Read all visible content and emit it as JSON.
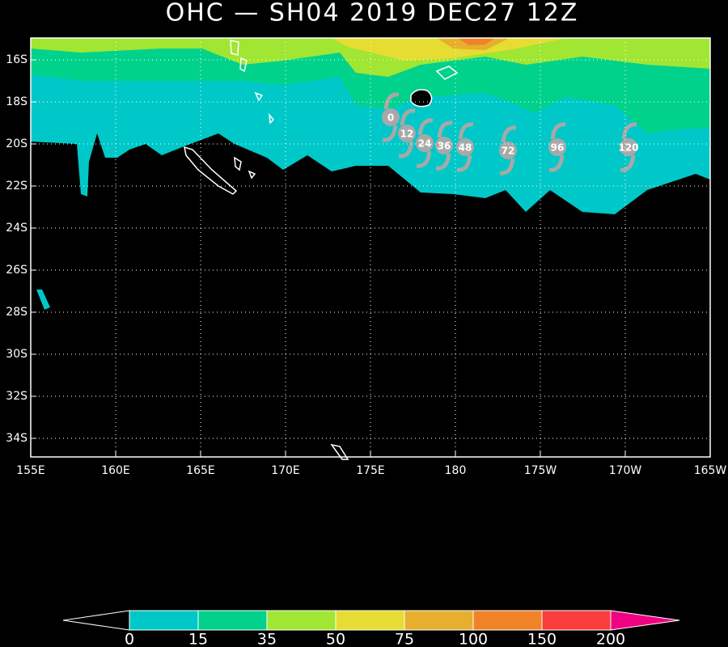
{
  "title": "OHC — SH04 2019 DEC27 12Z",
  "map": {
    "lat_labels": [
      "16S",
      "18S",
      "20S",
      "22S",
      "24S",
      "26S",
      "28S",
      "30S",
      "32S",
      "34S"
    ],
    "lon_labels": [
      "155E",
      "160E",
      "165E",
      "170E",
      "175E",
      "180",
      "175W",
      "170W",
      "165W"
    ]
  },
  "track": {
    "labels": [
      "0",
      "12",
      "24",
      "36",
      "48",
      "72",
      "96",
      "120"
    ],
    "color": "#a8a8a8"
  },
  "colorbar": {
    "levels": [
      0,
      15,
      35,
      50,
      75,
      100,
      150,
      200
    ],
    "colors": [
      "#00c8c8",
      "#00d28c",
      "#a0e632",
      "#e6dc32",
      "#e6af2d",
      "#f08228",
      "#fa3c3c"
    ],
    "under_color": "#000000",
    "over_color": "#f00082"
  }
}
